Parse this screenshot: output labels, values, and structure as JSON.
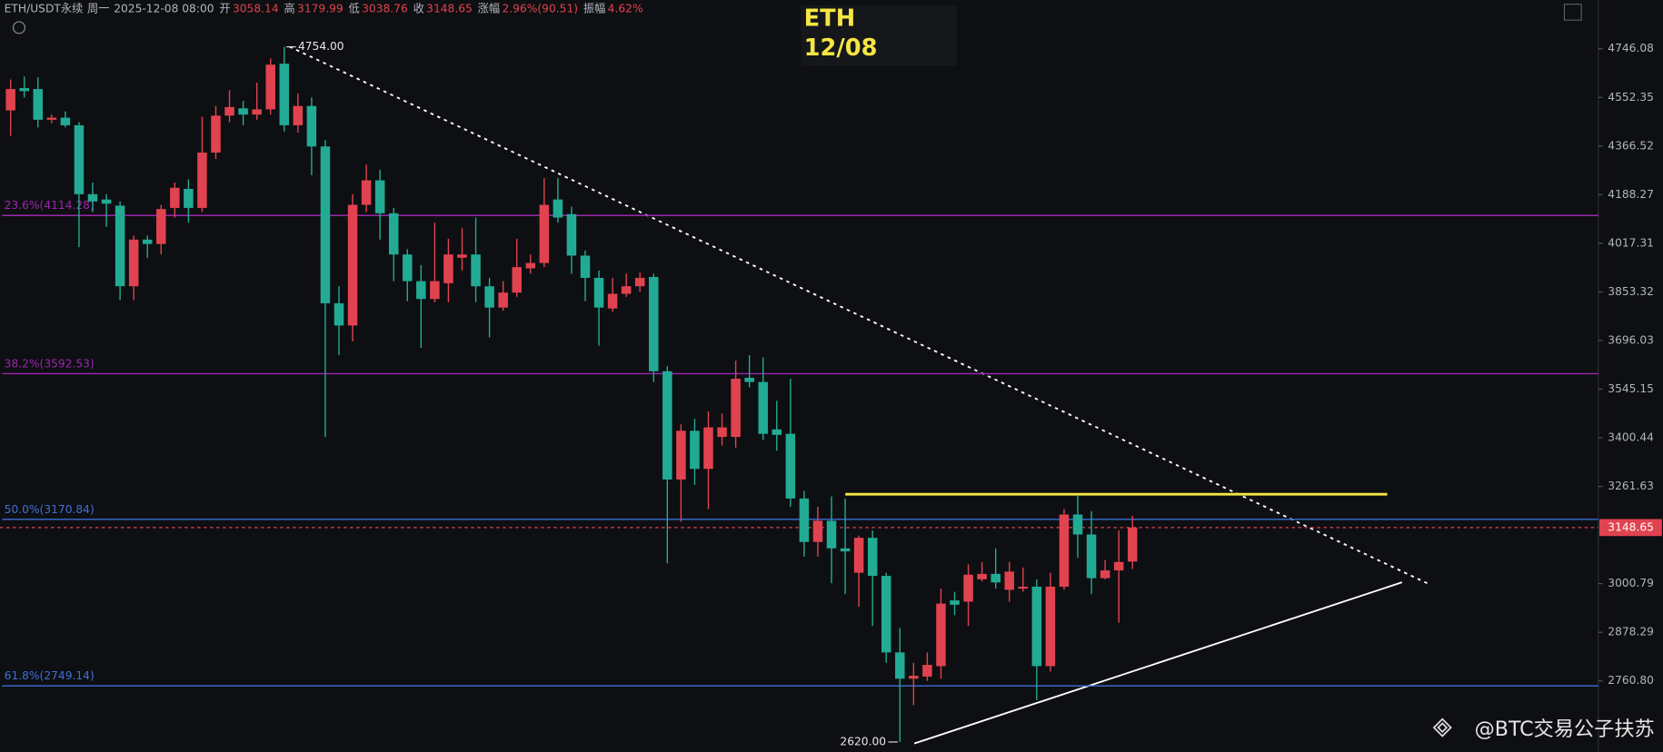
{
  "header": {
    "symbol": "ETH/USDT永续",
    "weekday": "周一",
    "datetime": "2025-12-08 08:00",
    "fields": [
      {
        "label": "开",
        "value": "3058.14"
      },
      {
        "label": "高",
        "value": "3179.99"
      },
      {
        "label": "低",
        "value": "3038.76"
      },
      {
        "label": "收",
        "value": "3148.65"
      },
      {
        "label": "涨幅",
        "value": "2.96%(90.51)"
      },
      {
        "label": "振幅",
        "value": "4.62%"
      }
    ]
  },
  "chart_data": {
    "type": "candlestick",
    "title": "ETH",
    "subtitle": "12/08",
    "up_color": "#e0434f",
    "down_color": "#22ab94",
    "log_scale": true,
    "ylim": [
      2597.6,
      4948.8
    ],
    "yticks": [
      4746.08,
      4552.35,
      4366.52,
      4188.27,
      4017.31,
      3853.32,
      3696.03,
      3545.15,
      3400.44,
      3261.63,
      3000.79,
      2878.29,
      {
        "value": 2760.8,
        "label": "2760.80"
      }
    ],
    "open": [
      4502,
      4589,
      4585,
      4466,
      4474,
      4445,
      4190,
      4171,
      4149,
      3872,
      4030,
      4015,
      4141,
      4209,
      4141,
      4342,
      4482,
      4510,
      4486,
      4506,
      4686,
      4445,
      4519,
      4365,
      3816,
      3744,
      4152,
      4240,
      4122,
      3979,
      3889,
      3830,
      3882,
      3968,
      3979,
      3872,
      3802,
      3851,
      3932,
      3950,
      4171,
      4119,
      3975,
      3900,
      3799,
      3847,
      3872,
      3903,
      3600,
      3281,
      3421,
      3311,
      3403,
      3403,
      3580,
      3567,
      3425,
      3412,
      3228,
      3110,
      3167,
      3093,
      3029,
      3121,
      3021,
      2829,
      2766,
      2771,
      2796,
      2958,
      2955,
      3012,
      3026,
      2985,
      2988,
      2993,
      2796,
      2993,
      3184,
      3130,
      3015,
      3035,
      3058.14
    ],
    "high": [
      4623,
      4635,
      4631,
      4486,
      4498,
      4457,
      4232,
      4190,
      4164,
      4044,
      4044,
      4152,
      4232,
      4244,
      4478,
      4519,
      4581,
      4539,
      4610,
      4707,
      4754,
      4568,
      4552,
      4389,
      3872,
      4190,
      4298,
      4279,
      4141,
      3997,
      3943,
      4089,
      4033,
      4070,
      4107,
      3900,
      3889,
      4033,
      3979,
      4248,
      4248,
      4145,
      3993,
      3925,
      3900,
      3914,
      3918,
      3914,
      3616,
      3440,
      3456,
      3478,
      3472,
      3633,
      3650,
      3643,
      3510,
      3577,
      3249,
      3205,
      3234,
      3228,
      3127,
      3141,
      3029,
      2889,
      2804,
      2829,
      2988,
      2980,
      3051,
      3057,
      3093,
      3057,
      3043,
      3012,
      3029,
      3199,
      3237,
      3193,
      3062,
      3141,
      3179.99
    ],
    "low": [
      4405,
      4552,
      4437,
      4453,
      4437,
      4004,
      4126,
      4074,
      3826,
      3826,
      3968,
      3979,
      4107,
      4089,
      4126,
      4318,
      4457,
      4445,
      4466,
      4486,
      4421,
      4417,
      4259,
      3403,
      3650,
      3693,
      4126,
      4030,
      3889,
      3823,
      3673,
      3819,
      3819,
      3925,
      3819,
      3706,
      3792,
      3837,
      3914,
      3936,
      4089,
      3914,
      3823,
      3680,
      3788,
      3837,
      3854,
      3567,
      3054,
      3164,
      3266,
      3199,
      3378,
      3372,
      3551,
      3394,
      3363,
      3205,
      3071,
      3071,
      3002,
      2974,
      2942,
      2894,
      2804,
      2620,
      2704,
      2761,
      2766,
      2921,
      2894,
      3007,
      2988,
      2955,
      2980,
      2716,
      2783,
      2985,
      3068,
      2974,
      3012,
      2902,
      3038.76
    ],
    "close": [
      4585,
      4577,
      4466,
      4474,
      4445,
      4190,
      4164,
      4156,
      3872,
      4030,
      4015,
      4137,
      4213,
      4141,
      4342,
      4482,
      4515,
      4486,
      4506,
      4682,
      4445,
      4519,
      4365,
      3816,
      3744,
      4152,
      4240,
      4122,
      3979,
      3889,
      3830,
      3889,
      3979,
      3979,
      3872,
      3802,
      3851,
      3936,
      3950,
      4152,
      4107,
      3975,
      3900,
      3802,
      3847,
      3872,
      3900,
      3600,
      3281,
      3421,
      3311,
      3431,
      3431,
      3577,
      3567,
      3412,
      3409,
      3228,
      3110,
      3167,
      3093,
      3085,
      3121,
      3021,
      2829,
      2766,
      2773,
      2799,
      2950,
      2947,
      3024,
      3026,
      3004,
      3032,
      2993,
      2796,
      2993,
      3184,
      3130,
      3015,
      3035,
      3057,
      3148.65
    ],
    "fib_levels": [
      {
        "label": "23.6%(4114.28)",
        "value": 4114.28,
        "color": "#9c27b0"
      },
      {
        "label": "38.2%(3592.53)",
        "value": 3592.53,
        "color": "#9c27b0"
      },
      {
        "label": "50.0%(3170.84)",
        "value": 3170.84,
        "color": "#3f6fd8"
      },
      {
        "label": "61.8%(2749.14)",
        "value": 2749.14,
        "color": "#3f6fd8"
      }
    ],
    "last_price": {
      "value": 3148.65,
      "label": "3148.65"
    },
    "high_label": "4754.00",
    "low_label": "2620.00",
    "watermark": "@BTC交易公子扶苏"
  }
}
